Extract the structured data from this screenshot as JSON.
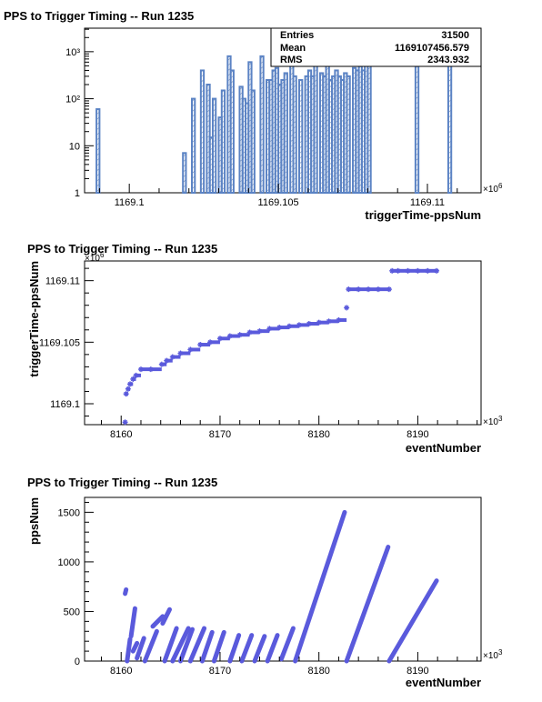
{
  "chart_data": [
    {
      "type": "bar",
      "title": "PPS to Trigger Timing -- Run 1235",
      "xlabel": "triggerTime-ppsNum",
      "ylabel": "",
      "x_multiplier": "×10^6",
      "x_multiplier_base": "×10",
      "x_multiplier_exp": "6",
      "ylog": true,
      "xlim": [
        1169.0985,
        1169.1118
      ],
      "ylim_decades": [
        0,
        3.5
      ],
      "x_ticks": [
        1169.1,
        1169.105,
        1169.11
      ],
      "x_tick_labels": [
        "1169.1",
        "1169.105",
        "1169.11"
      ],
      "y_ticks": [
        1,
        10,
        100,
        1000
      ],
      "y_tick_labels": [
        "1",
        "10",
        "10²",
        "10³"
      ],
      "stats": {
        "entries_label": "Entries",
        "entries": "31500",
        "mean_label": "Mean",
        "mean": "1169107456.579",
        "rms_label": "RMS",
        "rms": "2343.932"
      },
      "bins_x": [
        1169.0989,
        1169.1018,
        1169.1019,
        1169.102,
        1169.1021,
        1169.1022,
        1169.1023,
        1169.1024,
        1169.1025,
        1169.1026,
        1169.1027,
        1169.1028,
        1169.1029,
        1169.103,
        1169.1031,
        1169.1032,
        1169.1033,
        1169.1034,
        1169.1035,
        1169.1036,
        1169.1037,
        1169.1038,
        1169.1039,
        1169.104,
        1169.1041,
        1169.1042,
        1169.1043,
        1169.1044,
        1169.1045,
        1169.1046,
        1169.1047,
        1169.1048,
        1169.1049,
        1169.105,
        1169.1051,
        1169.1052,
        1169.1053,
        1169.1054,
        1169.1055,
        1169.1056,
        1169.1057,
        1169.1058,
        1169.1059,
        1169.106,
        1169.1061,
        1169.1062,
        1169.1063,
        1169.1064,
        1169.1065,
        1169.1066,
        1169.1067,
        1169.1068,
        1169.1069,
        1169.107,
        1169.1071,
        1169.1072,
        1169.1073,
        1169.1074,
        1169.1075,
        1169.1076,
        1169.1077,
        1169.1078,
        1169.1079,
        1169.108,
        1169.1096,
        1169.1107
      ],
      "bins_count": [
        60,
        7,
        0,
        0,
        100,
        0,
        0,
        400,
        0,
        200,
        15,
        100,
        0,
        40,
        150,
        0,
        800,
        400,
        0,
        0,
        180,
        100,
        80,
        600,
        150,
        0,
        0,
        800,
        0,
        250,
        250,
        400,
        450,
        200,
        250,
        350,
        0,
        600,
        300,
        0,
        250,
        0,
        300,
        400,
        300,
        600,
        0,
        350,
        300,
        700,
        250,
        300,
        400,
        300,
        250,
        350,
        300,
        0,
        450,
        400,
        700,
        400,
        500,
        1100,
        700,
        700
      ]
    },
    {
      "type": "scatter",
      "title": "PPS to Trigger Timing -- Run 1235",
      "xlabel": "eventNumber",
      "ylabel": "triggerTime-ppsNum",
      "x_multiplier": "×10^3",
      "x_multiplier_base": "×10",
      "x_multiplier_exp": "3",
      "y_multiplier": "×10^6",
      "y_multiplier_base": "×10",
      "y_multiplier_exp": "6",
      "xlim": [
        8156.3,
        8196.4
      ],
      "ylim": [
        1169.0983,
        1169.1116
      ],
      "x_ticks": [
        8160,
        8170,
        8180,
        8190
      ],
      "x_tick_labels": [
        "8160",
        "8170",
        "8180",
        "8190"
      ],
      "y_ticks": [
        1169.1,
        1169.105,
        1169.11
      ],
      "y_tick_labels": [
        "1169.1",
        "1169.105",
        "1169.11"
      ],
      "color": "#5a5adc",
      "points_x": [
        8160.4,
        8160.5,
        8160.7,
        8160.9,
        8161.2,
        8161.5,
        8162.0,
        8163.0,
        8164.1,
        8164.6,
        8165.2,
        8166.0,
        8167.0,
        8168.0,
        8169.0,
        8170.0,
        8171.0,
        8172.0,
        8173.0,
        8174.0,
        8175.0,
        8176.0,
        8177.0,
        8178.0,
        8179.0,
        8180.0,
        8181.0,
        8182.0,
        8182.8,
        8183.0,
        8184.0,
        8185.0,
        8186.0,
        8187.1,
        8187.4,
        8188.0,
        8189.0,
        8190.0,
        8191.0,
        8191.9
      ],
      "points_y": [
        1169.0985,
        1169.1008,
        1169.1012,
        1169.1016,
        1169.102,
        1169.1023,
        1169.1028,
        1169.1028,
        1169.1032,
        1169.1035,
        1169.1038,
        1169.1041,
        1169.1044,
        1169.1048,
        1169.105,
        1169.1053,
        1169.1055,
        1169.1056,
        1169.1058,
        1169.1059,
        1169.1061,
        1169.1062,
        1169.1063,
        1169.1064,
        1169.1065,
        1169.1066,
        1169.1067,
        1169.1068,
        1169.1078,
        1169.1093,
        1169.1093,
        1169.1093,
        1169.1093,
        1169.1093,
        1169.1108,
        1169.1108,
        1169.1108,
        1169.1108,
        1169.1108,
        1169.1108
      ]
    },
    {
      "type": "scatter",
      "title": "PPS to Trigger Timing -- Run 1235",
      "xlabel": "eventNumber",
      "ylabel": "ppsNum",
      "x_multiplier": "×10^3",
      "x_multiplier_base": "×10",
      "x_multiplier_exp": "3",
      "xlim": [
        8156.3,
        8196.4
      ],
      "ylim": [
        0,
        1650
      ],
      "x_ticks": [
        8160,
        8170,
        8180,
        8190
      ],
      "x_tick_labels": [
        "8160",
        "8170",
        "8180",
        "8190"
      ],
      "y_ticks": [
        0,
        500,
        1000,
        1500
      ],
      "y_tick_labels": [
        "0",
        "500",
        "1000",
        "1500"
      ],
      "color": "#5a5adc",
      "segments": [
        {
          "x": [
            8160.4,
            8160.5
          ],
          "y": [
            680,
            720
          ]
        },
        {
          "x": [
            8160.6,
            8160.9
          ],
          "y": [
            0,
            220
          ]
        },
        {
          "x": [
            8161.0,
            8161.4
          ],
          "y": [
            250,
            530
          ]
        },
        {
          "x": [
            8161.2,
            8161.6
          ],
          "y": [
            100,
            180
          ]
        },
        {
          "x": [
            8161.6,
            8162.3
          ],
          "y": [
            30,
            230
          ]
        },
        {
          "x": [
            8162.4,
            8163.6
          ],
          "y": [
            0,
            300
          ]
        },
        {
          "x": [
            8163.2,
            8164.2
          ],
          "y": [
            350,
            450
          ]
        },
        {
          "x": [
            8164.2,
            8164.9
          ],
          "y": [
            380,
            520
          ]
        },
        {
          "x": [
            8164.4,
            8165.6
          ],
          "y": [
            0,
            330
          ]
        },
        {
          "x": [
            8165.2,
            8166.8
          ],
          "y": [
            0,
            330
          ]
        },
        {
          "x": [
            8166.0,
            8167.2
          ],
          "y": [
            0,
            320
          ]
        },
        {
          "x": [
            8167.0,
            8168.4
          ],
          "y": [
            0,
            330
          ]
        },
        {
          "x": [
            8168.2,
            8169.2
          ],
          "y": [
            0,
            290
          ]
        },
        {
          "x": [
            8169.4,
            8170.4
          ],
          "y": [
            0,
            290
          ]
        },
        {
          "x": [
            8171.0,
            8171.9
          ],
          "y": [
            0,
            260
          ]
        },
        {
          "x": [
            8172.2,
            8173.2
          ],
          "y": [
            0,
            260
          ]
        },
        {
          "x": [
            8173.5,
            8174.5
          ],
          "y": [
            0,
            250
          ]
        },
        {
          "x": [
            8174.8,
            8175.8
          ],
          "y": [
            0,
            260
          ]
        },
        {
          "x": [
            8176.2,
            8177.4
          ],
          "y": [
            20,
            330
          ]
        },
        {
          "x": [
            8177.6,
            8182.6
          ],
          "y": [
            0,
            1500
          ]
        },
        {
          "x": [
            8182.8,
            8187.0
          ],
          "y": [
            0,
            1150
          ]
        },
        {
          "x": [
            8187.1,
            8191.9
          ],
          "y": [
            0,
            810
          ]
        }
      ]
    }
  ]
}
